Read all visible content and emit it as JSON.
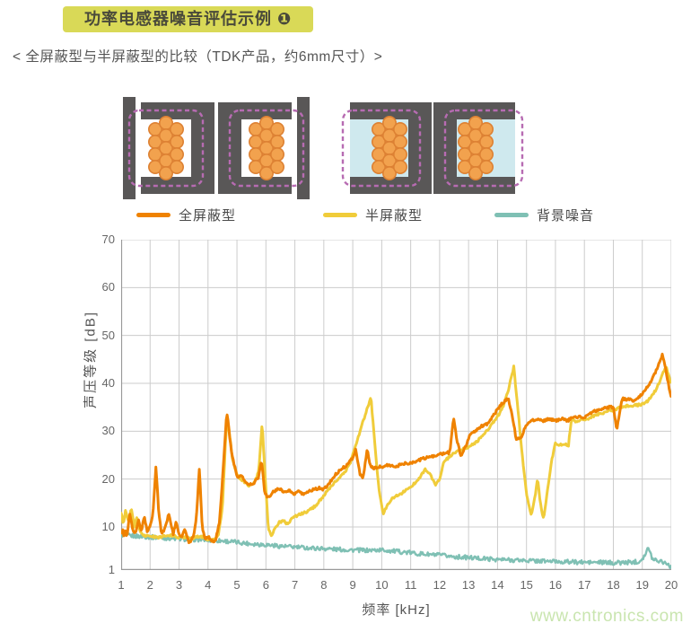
{
  "header": {
    "badge": "功率电感器噪音评估示例 ❶",
    "subtitle": "< 全屏蔽型与半屏蔽型的比较（TDK产品，约6mm尺寸）>"
  },
  "legend": {
    "items": [
      {
        "label": "全屏蔽型",
        "color": "#ef8200"
      },
      {
        "label": "半屏蔽型",
        "color": "#f0cc3a"
      },
      {
        "label": "背景噪音",
        "color": "#7fc0b4"
      }
    ]
  },
  "watermark": "www.cntronics.com",
  "diagram_colors": {
    "core_gray": "#595757",
    "coil_fill": "#f2a24e",
    "coil_stroke": "#dd8133",
    "resin_blue": "#cfe9ee",
    "shield_outline_magenta": "#b76bb2"
  },
  "chart_data": {
    "type": "line",
    "title": "",
    "xlabel": "频率 [kHz]",
    "ylabel": "声压等级 [dB]",
    "xlim": [
      1,
      20
    ],
    "ylim": [
      1,
      70
    ],
    "grid": true,
    "legend_position": "top",
    "x_ticks": [
      1,
      2,
      3,
      4,
      5,
      6,
      7,
      8,
      9,
      10,
      11,
      12,
      13,
      14,
      15,
      16,
      17,
      18,
      19,
      20
    ],
    "y_ticks": [
      70,
      60,
      50,
      40,
      30,
      20,
      10,
      1
    ],
    "series": [
      {
        "name": "背景噪音",
        "color": "#7fc0b4",
        "width": 2.4,
        "noise": 0.45,
        "points": [
          [
            1,
            8.3
          ],
          [
            1.5,
            8.1
          ],
          [
            2,
            7.9
          ],
          [
            2.5,
            7.7
          ],
          [
            3,
            7.5
          ],
          [
            3.5,
            7.4
          ],
          [
            4,
            7.3
          ],
          [
            4.5,
            7.1
          ],
          [
            5,
            6.8
          ],
          [
            5.5,
            6.5
          ],
          [
            6,
            6.3
          ],
          [
            6.5,
            6.0
          ],
          [
            7,
            5.8
          ],
          [
            7.5,
            5.6
          ],
          [
            8,
            5.5
          ],
          [
            8.5,
            5.3
          ],
          [
            9,
            5.2
          ],
          [
            9.5,
            5.1
          ],
          [
            10,
            5.2
          ],
          [
            10.5,
            4.9
          ],
          [
            11,
            4.6
          ],
          [
            11.5,
            4.3
          ],
          [
            12,
            4.1
          ],
          [
            12.5,
            3.8
          ],
          [
            13,
            3.6
          ],
          [
            13.5,
            3.4
          ],
          [
            14,
            3.2
          ],
          [
            14.5,
            3.1
          ],
          [
            15,
            3.0
          ],
          [
            15.5,
            2.9
          ],
          [
            16,
            2.8
          ],
          [
            16.5,
            2.7
          ],
          [
            17,
            2.6
          ],
          [
            17.5,
            2.6
          ],
          [
            18,
            2.5
          ],
          [
            18.5,
            2.6
          ],
          [
            18.9,
            2.8
          ],
          [
            19.1,
            4.2
          ],
          [
            19.2,
            5.6
          ],
          [
            19.35,
            3.4
          ],
          [
            19.5,
            3.1
          ],
          [
            19.7,
            2.8
          ],
          [
            19.85,
            2.4
          ],
          [
            20,
            1.6
          ]
        ]
      },
      {
        "name": "半屏蔽型",
        "color": "#f0cc3a",
        "width": 3,
        "noise": 0.25,
        "points": [
          [
            1,
            13
          ],
          [
            1.08,
            10.5
          ],
          [
            1.15,
            13.6
          ],
          [
            1.25,
            11
          ],
          [
            1.35,
            13.9
          ],
          [
            1.45,
            10
          ],
          [
            1.55,
            12.2
          ],
          [
            1.65,
            9.2
          ],
          [
            1.78,
            8.2
          ],
          [
            2.0,
            8.1
          ],
          [
            2.25,
            7.8
          ],
          [
            2.5,
            8.1
          ],
          [
            2.75,
            8.2
          ],
          [
            3.0,
            7.8
          ],
          [
            3.25,
            7.9
          ],
          [
            3.5,
            7.7
          ],
          [
            3.75,
            8.1
          ],
          [
            4.0,
            7.4
          ],
          [
            4.2,
            7.3
          ],
          [
            4.35,
            8
          ],
          [
            4.5,
            14
          ],
          [
            4.62,
            30
          ],
          [
            4.7,
            31.8
          ],
          [
            4.85,
            24
          ],
          [
            5.0,
            20.8
          ],
          [
            5.2,
            19.6
          ],
          [
            5.4,
            18.6
          ],
          [
            5.6,
            19.2
          ],
          [
            5.75,
            21.5
          ],
          [
            5.87,
            31.6
          ],
          [
            5.98,
            20
          ],
          [
            6.08,
            10
          ],
          [
            6.18,
            8.1
          ],
          [
            6.3,
            9.6
          ],
          [
            6.45,
            10.9
          ],
          [
            6.6,
            11.3
          ],
          [
            6.75,
            10.6
          ],
          [
            6.9,
            11.9
          ],
          [
            7.05,
            12.3
          ],
          [
            7.2,
            12.7
          ],
          [
            7.35,
            13
          ],
          [
            7.5,
            13.5
          ],
          [
            7.65,
            14.1
          ],
          [
            7.8,
            15
          ],
          [
            8.0,
            16.6
          ],
          [
            8.2,
            18
          ],
          [
            8.45,
            19.8
          ],
          [
            8.7,
            21.2
          ],
          [
            8.9,
            23.2
          ],
          [
            9.1,
            27
          ],
          [
            9.3,
            31
          ],
          [
            9.45,
            33.8
          ],
          [
            9.63,
            37
          ],
          [
            9.75,
            28
          ],
          [
            9.9,
            18
          ],
          [
            10.05,
            12.7
          ],
          [
            10.2,
            14.6
          ],
          [
            10.35,
            16
          ],
          [
            10.55,
            16.6
          ],
          [
            10.75,
            17.3
          ],
          [
            10.95,
            18.1
          ],
          [
            11.15,
            19.2
          ],
          [
            11.35,
            20.7
          ],
          [
            11.5,
            22
          ],
          [
            11.65,
            21.2
          ],
          [
            11.85,
            18.8
          ],
          [
            12.0,
            20
          ],
          [
            12.15,
            23.6
          ],
          [
            12.35,
            24.7
          ],
          [
            12.55,
            25.6
          ],
          [
            12.75,
            26.1
          ],
          [
            12.95,
            26.6
          ],
          [
            13.15,
            27.2
          ],
          [
            13.35,
            28.2
          ],
          [
            13.55,
            29.6
          ],
          [
            13.75,
            31
          ],
          [
            13.95,
            32.6
          ],
          [
            14.15,
            34.5
          ],
          [
            14.35,
            38
          ],
          [
            14.56,
            43.4
          ],
          [
            14.7,
            35
          ],
          [
            14.85,
            25
          ],
          [
            15.0,
            17
          ],
          [
            15.17,
            12.2
          ],
          [
            15.3,
            16.5
          ],
          [
            15.38,
            20.3
          ],
          [
            15.48,
            15
          ],
          [
            15.59,
            11.5
          ],
          [
            15.72,
            17.5
          ],
          [
            15.86,
            23.5
          ],
          [
            16.0,
            27.6
          ],
          [
            16.15,
            27.1
          ],
          [
            16.3,
            27.3
          ],
          [
            16.45,
            27.1
          ],
          [
            16.55,
            32.5
          ],
          [
            16.7,
            32.1
          ],
          [
            16.9,
            32.4
          ],
          [
            17.1,
            32.6
          ],
          [
            17.3,
            33.1
          ],
          [
            17.5,
            33.6
          ],
          [
            17.7,
            33.9
          ],
          [
            17.9,
            34.3
          ],
          [
            18.1,
            34.6
          ],
          [
            18.3,
            35.1
          ],
          [
            18.5,
            35.3
          ],
          [
            18.7,
            35.4
          ],
          [
            18.9,
            35.5
          ],
          [
            19.1,
            35.8
          ],
          [
            19.3,
            37
          ],
          [
            19.5,
            39
          ],
          [
            19.7,
            42
          ],
          [
            19.82,
            43.5
          ],
          [
            20,
            39.8
          ]
        ]
      },
      {
        "name": "全屏蔽型",
        "color": "#ef8200",
        "width": 3,
        "noise": 0.28,
        "points": [
          [
            1,
            8.5
          ],
          [
            1.05,
            9.5
          ],
          [
            1.1,
            8
          ],
          [
            1.15,
            9
          ],
          [
            1.2,
            8
          ],
          [
            1.3,
            12.8
          ],
          [
            1.4,
            9.5
          ],
          [
            1.5,
            8.5
          ],
          [
            1.6,
            11.5
          ],
          [
            1.7,
            9
          ],
          [
            1.8,
            12.3
          ],
          [
            1.9,
            9
          ],
          [
            2.0,
            10
          ],
          [
            2.1,
            13
          ],
          [
            2.2,
            22.5
          ],
          [
            2.3,
            13
          ],
          [
            2.4,
            8.5
          ],
          [
            2.5,
            9.5
          ],
          [
            2.65,
            12.8
          ],
          [
            2.8,
            8.5
          ],
          [
            2.9,
            11
          ],
          [
            3.0,
            8.5
          ],
          [
            3.1,
            8
          ],
          [
            3.2,
            9.5
          ],
          [
            3.35,
            6.5
          ],
          [
            3.5,
            8
          ],
          [
            3.6,
            12
          ],
          [
            3.7,
            22.3
          ],
          [
            3.8,
            10
          ],
          [
            3.9,
            7.5
          ],
          [
            4.0,
            8
          ],
          [
            4.1,
            7.2
          ],
          [
            4.25,
            7
          ],
          [
            4.4,
            11
          ],
          [
            4.5,
            20
          ],
          [
            4.65,
            34.2
          ],
          [
            4.8,
            26
          ],
          [
            5.0,
            20.5
          ],
          [
            5.15,
            20.8
          ],
          [
            5.3,
            19.2
          ],
          [
            5.45,
            18.8
          ],
          [
            5.6,
            19.3
          ],
          [
            5.75,
            20.5
          ],
          [
            5.85,
            24
          ],
          [
            5.95,
            17.5
          ],
          [
            6.05,
            16
          ],
          [
            6.2,
            17
          ],
          [
            6.35,
            17.8
          ],
          [
            6.5,
            18
          ],
          [
            6.65,
            17.2
          ],
          [
            6.8,
            17.6
          ],
          [
            6.95,
            16.8
          ],
          [
            7.1,
            17.4
          ],
          [
            7.25,
            16.9
          ],
          [
            7.4,
            17.2
          ],
          [
            7.55,
            17.6
          ],
          [
            7.7,
            17.9
          ],
          [
            7.85,
            18.1
          ],
          [
            8.0,
            17.9
          ],
          [
            8.2,
            19.2
          ],
          [
            8.4,
            21
          ],
          [
            8.6,
            22
          ],
          [
            8.8,
            23
          ],
          [
            9.0,
            24.5
          ],
          [
            9.1,
            26.2
          ],
          [
            9.25,
            21
          ],
          [
            9.35,
            20
          ],
          [
            9.5,
            26.3
          ],
          [
            9.6,
            22.8
          ],
          [
            9.75,
            22.3
          ],
          [
            10.0,
            22.6
          ],
          [
            10.25,
            22.9
          ],
          [
            10.5,
            22.7
          ],
          [
            10.75,
            23.2
          ],
          [
            11.0,
            23.4
          ],
          [
            11.25,
            23.9
          ],
          [
            11.5,
            24.4
          ],
          [
            11.75,
            24.7
          ],
          [
            12.0,
            25.1
          ],
          [
            12.2,
            25.4
          ],
          [
            12.35,
            25.6
          ],
          [
            12.48,
            32.8
          ],
          [
            12.6,
            28
          ],
          [
            12.75,
            24.6
          ],
          [
            12.9,
            27
          ],
          [
            13.05,
            29.2
          ],
          [
            13.25,
            30.2
          ],
          [
            13.45,
            31
          ],
          [
            13.65,
            31.6
          ],
          [
            13.85,
            33.2
          ],
          [
            14.05,
            35
          ],
          [
            14.2,
            36
          ],
          [
            14.36,
            37
          ],
          [
            14.5,
            33.5
          ],
          [
            14.65,
            28.2
          ],
          [
            14.8,
            28.6
          ],
          [
            15.0,
            31.4
          ],
          [
            15.2,
            32.2
          ],
          [
            15.4,
            32.6
          ],
          [
            15.6,
            32.1
          ],
          [
            15.8,
            32.6
          ],
          [
            16.0,
            32.2
          ],
          [
            16.2,
            32.6
          ],
          [
            16.4,
            32.2
          ],
          [
            16.6,
            32.8
          ],
          [
            16.8,
            33.1
          ],
          [
            17.0,
            32.9
          ],
          [
            17.2,
            33.6
          ],
          [
            17.4,
            34.3
          ],
          [
            17.6,
            34.6
          ],
          [
            17.8,
            35
          ],
          [
            18.0,
            35.1
          ],
          [
            18.12,
            30.3
          ],
          [
            18.3,
            36.8
          ],
          [
            18.5,
            36.6
          ],
          [
            18.7,
            36.4
          ],
          [
            18.9,
            37.2
          ],
          [
            19.1,
            38.5
          ],
          [
            19.3,
            40.5
          ],
          [
            19.5,
            43
          ],
          [
            19.7,
            46
          ],
          [
            19.85,
            41.5
          ],
          [
            20,
            36.8
          ]
        ]
      }
    ]
  }
}
